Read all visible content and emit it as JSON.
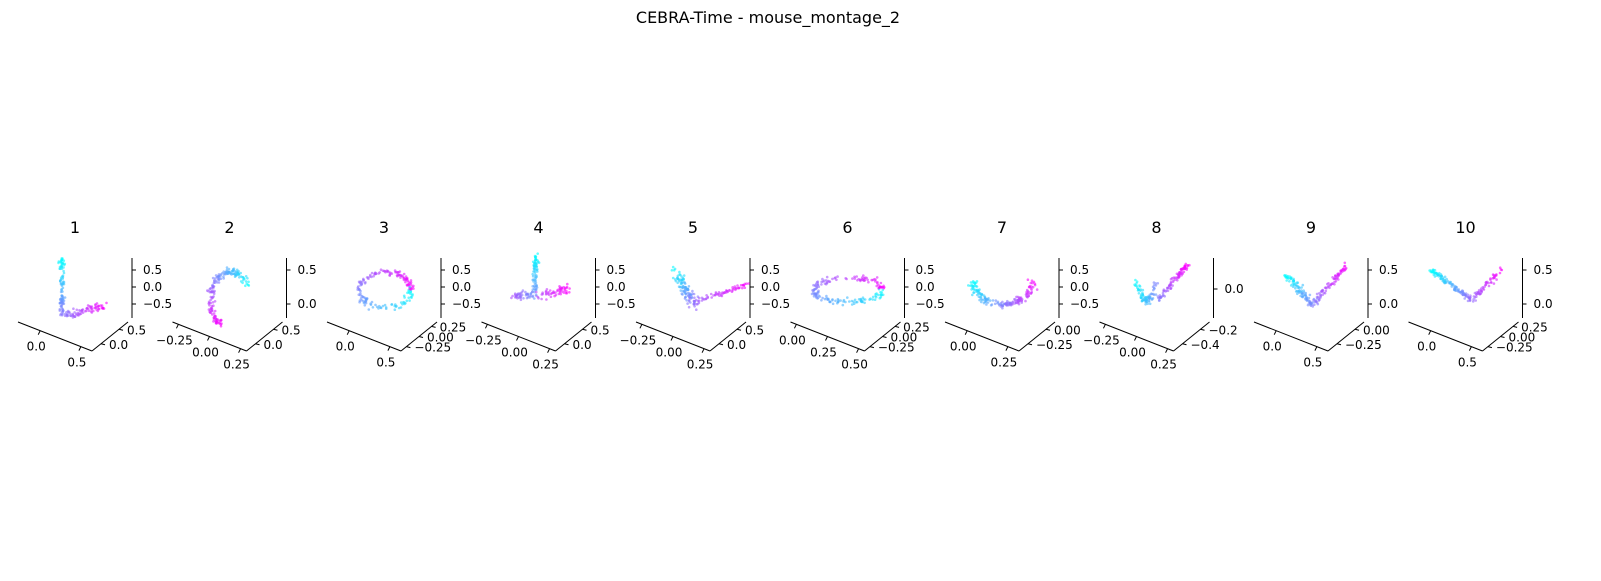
{
  "figure": {
    "title": "CEBRA-Time - mouse_montage_2"
  },
  "colormap": [
    "#00ffff",
    "#ff00ff"
  ],
  "chart_data": [
    {
      "type": "scatter",
      "title": "1",
      "shape": "L",
      "z_ticks": [
        "0.5",
        "0.0",
        "−0.5"
      ],
      "y_ticks": [
        "0.5",
        "0.0"
      ],
      "x_ticks": [
        "0.0",
        "0.5"
      ]
    },
    {
      "type": "scatter",
      "title": "2",
      "shape": "arch",
      "z_ticks": [
        "0.5",
        "0.0"
      ],
      "y_ticks": [
        "0.5",
        "0.0"
      ],
      "x_ticks": [
        "−0.25",
        "0.00",
        "0.25"
      ]
    },
    {
      "type": "scatter",
      "title": "3",
      "shape": "loop",
      "z_ticks": [
        "0.5",
        "0.0",
        "−0.5"
      ],
      "y_ticks": [
        "0.25",
        "0.00",
        "−0.25"
      ],
      "x_ticks": [
        "0.0",
        "0.5"
      ]
    },
    {
      "type": "scatter",
      "title": "4",
      "shape": "Y",
      "z_ticks": [
        "0.5",
        "0.0",
        "−0.5"
      ],
      "y_ticks": [
        "0.5",
        "0.0"
      ],
      "x_ticks": [
        "−0.25",
        "0.00",
        "0.25"
      ]
    },
    {
      "type": "scatter",
      "title": "5",
      "shape": "hook",
      "z_ticks": [
        "0.5",
        "0.0",
        "−0.5"
      ],
      "y_ticks": [
        "0.5",
        "0.0"
      ],
      "x_ticks": [
        "−0.25",
        "0.00",
        "0.25"
      ]
    },
    {
      "type": "scatter",
      "title": "6",
      "shape": "ring",
      "z_ticks": [
        "0.5",
        "0.0",
        "−0.5"
      ],
      "y_ticks": [
        "0.25",
        "0.00",
        "−0.25"
      ],
      "x_ticks": [
        "0.00",
        "0.25",
        "0.50"
      ]
    },
    {
      "type": "scatter",
      "title": "7",
      "shape": "arc",
      "z_ticks": [
        "0.5",
        "0.0",
        "−0.5"
      ],
      "y_ticks": [
        "0.00",
        "−0.25"
      ],
      "x_ticks": [
        "0.00",
        "0.25"
      ]
    },
    {
      "type": "scatter",
      "title": "8",
      "shape": "S",
      "z_ticks": [
        "0.0"
      ],
      "y_ticks": [
        "−0.2",
        "−0.4"
      ],
      "x_ticks": [
        "−0.25",
        "0.00",
        "0.25"
      ]
    },
    {
      "type": "scatter",
      "title": "9",
      "shape": "V",
      "z_ticks": [
        "0.5",
        "0.0"
      ],
      "y_ticks": [
        "0.00",
        "−0.25"
      ],
      "x_ticks": [
        "0.0",
        "0.5"
      ]
    },
    {
      "type": "scatter",
      "title": "10",
      "shape": "fan",
      "z_ticks": [
        "0.5",
        "0.0"
      ],
      "y_ticks": [
        "0.25",
        "0.00",
        "−0.25"
      ],
      "x_ticks": [
        "0.0",
        "0.5"
      ]
    }
  ]
}
